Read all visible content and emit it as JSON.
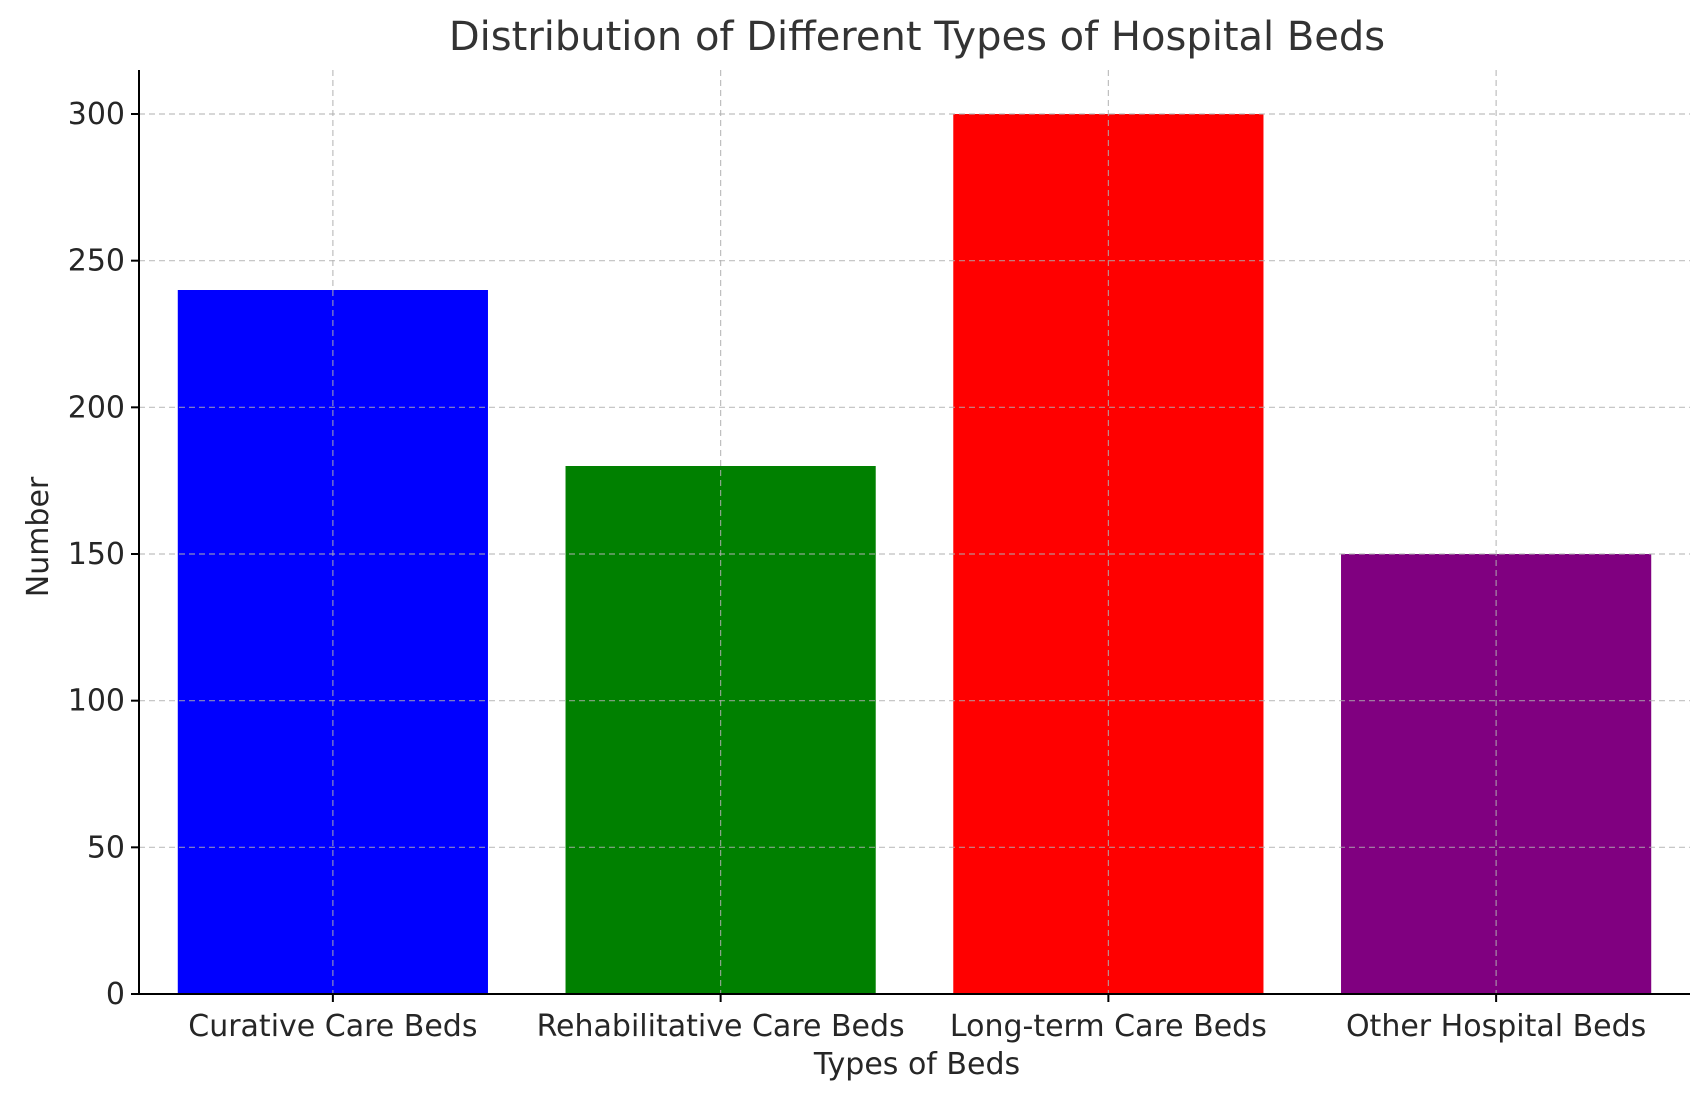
{
  "chart_data": {
    "type": "bar",
    "title": "Distribution of Different Types of Hospital Beds",
    "xlabel": "Types of Beds",
    "ylabel": "Number",
    "categories": [
      "Curative Care Beds",
      "Rehabilitative Care Beds",
      "Long-term Care Beds",
      "Other Hospital Beds"
    ],
    "values": [
      240,
      180,
      300,
      150
    ],
    "colors": [
      "#0000ff",
      "#008000",
      "#ff0000",
      "#800080"
    ],
    "ylim": [
      0,
      315
    ],
    "yticks": [
      0,
      50,
      100,
      150,
      200,
      250,
      300
    ],
    "grid": true
  }
}
